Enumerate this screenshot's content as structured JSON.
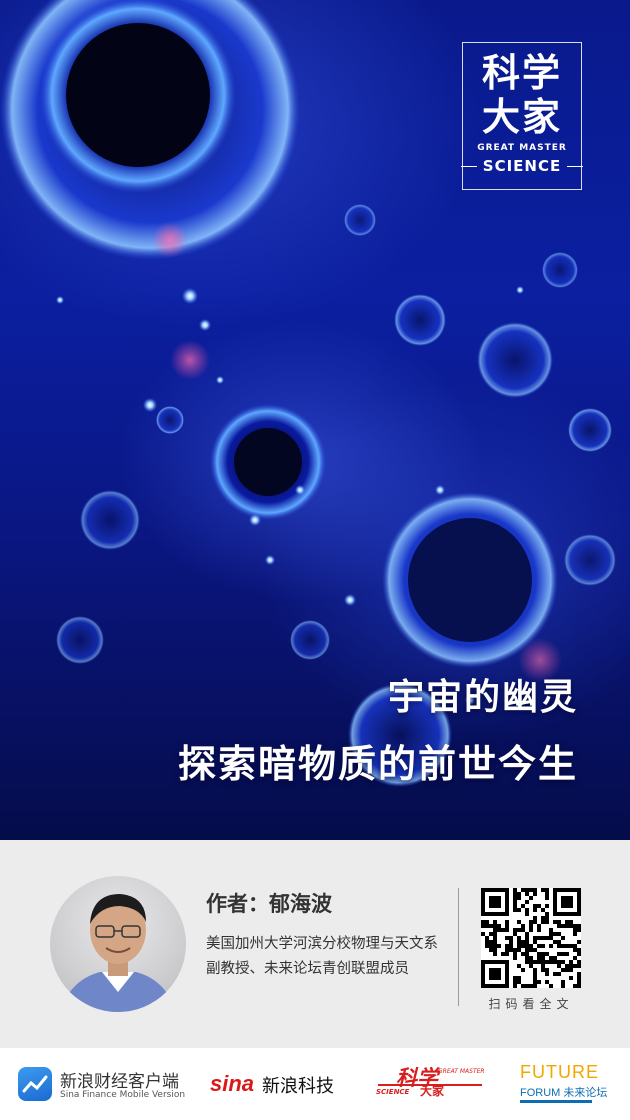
{
  "hero": {
    "brand": {
      "cn": "科学大家",
      "cn_line1": "科学",
      "cn_line2": "大家",
      "en_small": "GREAT MASTER",
      "en_large": "SCIENCE"
    },
    "title_line1": "宇宙的幽灵",
    "title_line2": "探索暗物质的前世今生"
  },
  "author": {
    "label": "作者：郁海波",
    "description": "美国加州大学河滨分校物理与天文系副教授、未来论坛青创联盟成员",
    "qr_caption": "扫码看全文"
  },
  "footer": {
    "sina_finance_cn": "新浪财经客户端",
    "sina_finance_en": "Sina Finance Mobile Version",
    "sina_logo": "sina",
    "sina_tech": "新浪科技",
    "science_master_cn1": "科学",
    "science_master_cn2": "大家",
    "science_master_en1": "SCIENCE",
    "science_master_en2": "GREAT MASTER",
    "future_forum_line1": "FUTURE",
    "future_forum_line2": "FORUM 未来论坛"
  },
  "colors": {
    "hero_deep_blue": "#0b1fa0",
    "band_gray": "#ececec",
    "sina_red": "#d91a1a",
    "future_orange": "#f3a600",
    "future_blue": "#0c6db5"
  }
}
